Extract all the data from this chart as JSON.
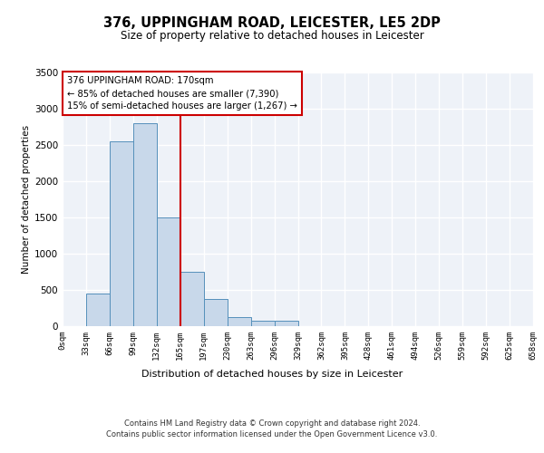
{
  "title_line1": "376, UPPINGHAM ROAD, LEICESTER, LE5 2DP",
  "title_line2": "Size of property relative to detached houses in Leicester",
  "xlabel": "Distribution of detached houses by size in Leicester",
  "ylabel": "Number of detached properties",
  "bar_color": "#c8d8ea",
  "bar_edge_color": "#5590bb",
  "vline_color": "#cc0000",
  "vline_x": 5,
  "annotation_text": "376 UPPINGHAM ROAD: 170sqm\n← 85% of detached houses are smaller (7,390)\n15% of semi-detached houses are larger (1,267) →",
  "annotation_box_color": "#ffffff",
  "annotation_box_edge_color": "#cc0000",
  "bin_labels": [
    "0sqm",
    "33sqm",
    "66sqm",
    "99sqm",
    "132sqm",
    "165sqm",
    "197sqm",
    "230sqm",
    "263sqm",
    "296sqm",
    "329sqm",
    "362sqm",
    "395sqm",
    "428sqm",
    "461sqm",
    "494sqm",
    "526sqm",
    "559sqm",
    "592sqm",
    "625sqm",
    "658sqm"
  ],
  "bar_heights": [
    0,
    450,
    2550,
    2800,
    1500,
    750,
    380,
    130,
    70,
    70,
    0,
    0,
    0,
    0,
    0,
    0,
    0,
    0,
    0,
    0
  ],
  "ylim": [
    0,
    3500
  ],
  "yticks": [
    0,
    500,
    1000,
    1500,
    2000,
    2500,
    3000,
    3500
  ],
  "background_color": "#eef2f8",
  "grid_color": "#ffffff",
  "footer_line1": "Contains HM Land Registry data © Crown copyright and database right 2024.",
  "footer_line2": "Contains public sector information licensed under the Open Government Licence v3.0."
}
